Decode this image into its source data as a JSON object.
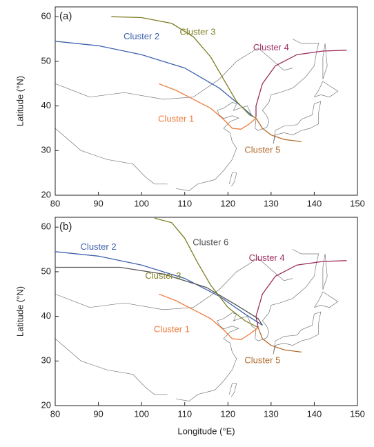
{
  "chart_data": [
    {
      "type": "line",
      "panel_label": "(a)",
      "ylabel": "Latitude (°N)",
      "xlim": [
        80,
        150
      ],
      "ylim": [
        20,
        62.2
      ],
      "xticks": [
        80,
        90,
        100,
        110,
        120,
        130,
        140,
        150
      ],
      "yticks": [
        20,
        30,
        40,
        50,
        60
      ],
      "grid": false,
      "series": [
        {
          "name": "Cluster 2",
          "color": "#3f62ad",
          "x": [
            80,
            90,
            100,
            110,
            118,
            123,
            126
          ],
          "values": [
            54.5,
            53.5,
            51.5,
            48.5,
            44,
            40,
            37.5
          ]
        },
        {
          "name": "Cluster 3",
          "color": "#7d7d22",
          "x": [
            93,
            100,
            107,
            112,
            116,
            119,
            122,
            125,
            126.5
          ],
          "values": [
            60,
            59.8,
            58.5,
            55.5,
            51,
            46,
            41,
            38,
            37.3
          ]
        },
        {
          "name": "Cluster 4",
          "color": "#9c2b5c",
          "x": [
            147.5,
            142,
            136,
            131,
            128,
            126.5,
            126.5
          ],
          "values": [
            52.5,
            52.3,
            51.5,
            49,
            45,
            40,
            37.5
          ]
        },
        {
          "name": "Cluster 1",
          "color": "#f07a3a",
          "x": [
            104,
            108,
            112,
            116,
            119,
            121,
            123,
            125,
            126.5
          ],
          "values": [
            45,
            43.5,
            41.5,
            39.5,
            37,
            35,
            34.8,
            36,
            37.3
          ]
        },
        {
          "name": "Cluster 5",
          "color": "#b06a2a",
          "x": [
            126.5,
            128,
            130,
            133,
            137
          ],
          "values": [
            37.3,
            35,
            33.5,
            32.5,
            32
          ]
        }
      ]
    },
    {
      "type": "line",
      "panel_label": "(b)",
      "ylabel": "Latitude (°N)",
      "xlabel": "Longitude (°E)",
      "xlim": [
        80,
        150
      ],
      "ylim": [
        20,
        62.2
      ],
      "xticks": [
        80,
        90,
        100,
        110,
        120,
        130,
        140,
        150
      ],
      "yticks": [
        20,
        30,
        40,
        50,
        60
      ],
      "grid": false,
      "series": [
        {
          "name": "Cluster 2",
          "color": "#3f62ad",
          "x": [
            80,
            90,
            100,
            110,
            118,
            124,
            128
          ],
          "values": [
            54.5,
            53.5,
            51.5,
            48.5,
            44.5,
            40.5,
            38
          ]
        },
        {
          "name": "Cluster 6",
          "color": "#555555",
          "x": [
            80,
            95,
            105,
            115,
            122,
            127,
            128
          ],
          "values": [
            51,
            51,
            49.5,
            46.5,
            42.5,
            39.5,
            38
          ]
        },
        {
          "name": "Cluster 3",
          "color": "#7d7d22",
          "x": [
            103,
            107,
            110,
            113,
            116,
            120,
            124,
            127
          ],
          "values": [
            62,
            61,
            57.5,
            52,
            47,
            42,
            39,
            37.5
          ]
        },
        {
          "name": "Cluster 4",
          "color": "#9c2b5c",
          "x": [
            147.5,
            142,
            136,
            131,
            128,
            126.5,
            127
          ],
          "values": [
            52.5,
            52.3,
            51.5,
            49,
            45,
            40,
            37.5
          ]
        },
        {
          "name": "Cluster 1",
          "color": "#f07a3a",
          "x": [
            104,
            108,
            112,
            116,
            119,
            121,
            123,
            125,
            127
          ],
          "values": [
            45,
            43.5,
            41.5,
            39.5,
            37,
            35,
            34.8,
            36,
            37.5
          ]
        },
        {
          "name": "Cluster 5",
          "color": "#b06a2a",
          "x": [
            127,
            128,
            130,
            133,
            137
          ],
          "values": [
            37.5,
            35,
            33.5,
            32.5,
            32
          ]
        }
      ]
    }
  ]
}
